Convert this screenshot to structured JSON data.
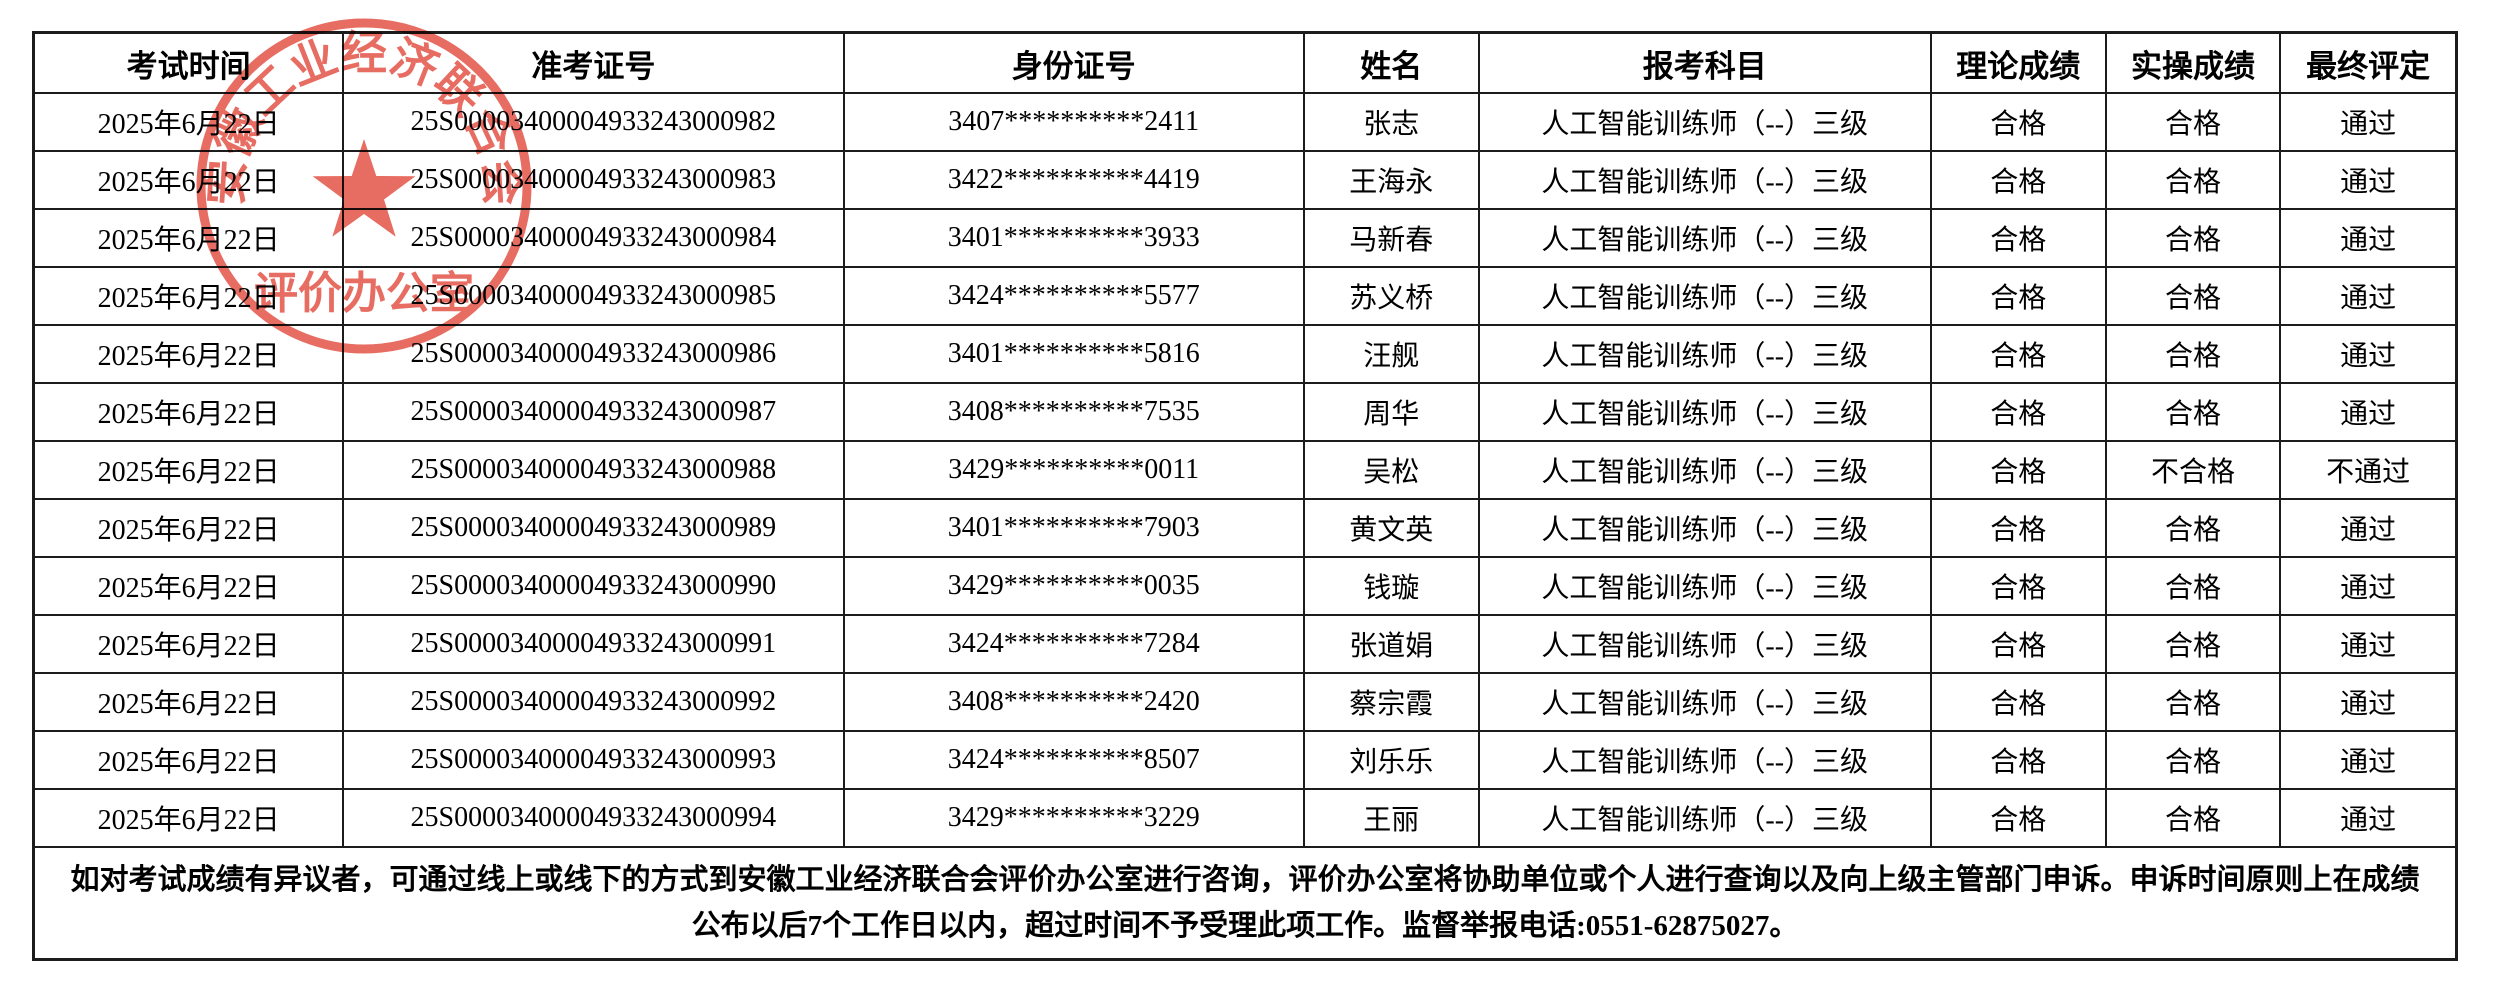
{
  "document": {
    "type": "exam-score-publication-table",
    "language": "zh-CN"
  },
  "colors": {
    "background": "#ffffff",
    "border": "#1c1c1c",
    "text": "#000000",
    "seal_red": "#e4584c"
  },
  "table": {
    "columns": [
      {
        "key": "date",
        "label": "考试时间"
      },
      {
        "key": "ticket_no",
        "label": "准考证号"
      },
      {
        "key": "id_no",
        "label": "身份证号"
      },
      {
        "key": "name",
        "label": "姓名"
      },
      {
        "key": "subject",
        "label": "报考科目"
      },
      {
        "key": "theory",
        "label": "理论成绩"
      },
      {
        "key": "practical",
        "label": "实操成绩"
      },
      {
        "key": "result",
        "label": "最终评定"
      }
    ],
    "rows": [
      {
        "date": "2025年6月22日",
        "ticket_no": "25S00003400004933243000982",
        "id_no": "3407**********2411",
        "name": "张志",
        "subject": "人工智能训练师（--）三级",
        "theory": "合格",
        "practical": "合格",
        "result": "通过"
      },
      {
        "date": "2025年6月22日",
        "ticket_no": "25S00003400004933243000983",
        "id_no": "3422**********4419",
        "name": "王海永",
        "subject": "人工智能训练师（--）三级",
        "theory": "合格",
        "practical": "合格",
        "result": "通过"
      },
      {
        "date": "2025年6月22日",
        "ticket_no": "25S00003400004933243000984",
        "id_no": "3401**********3933",
        "name": "马新春",
        "subject": "人工智能训练师（--）三级",
        "theory": "合格",
        "practical": "合格",
        "result": "通过"
      },
      {
        "date": "2025年6月22日",
        "ticket_no": "25S00003400004933243000985",
        "id_no": "3424**********5577",
        "name": "苏义桥",
        "subject": "人工智能训练师（--）三级",
        "theory": "合格",
        "practical": "合格",
        "result": "通过"
      },
      {
        "date": "2025年6月22日",
        "ticket_no": "25S00003400004933243000986",
        "id_no": "3401**********5816",
        "name": "汪舰",
        "subject": "人工智能训练师（--）三级",
        "theory": "合格",
        "practical": "合格",
        "result": "通过"
      },
      {
        "date": "2025年6月22日",
        "ticket_no": "25S00003400004933243000987",
        "id_no": "3408**********7535",
        "name": "周华",
        "subject": "人工智能训练师（--）三级",
        "theory": "合格",
        "practical": "合格",
        "result": "通过"
      },
      {
        "date": "2025年6月22日",
        "ticket_no": "25S00003400004933243000988",
        "id_no": "3429**********0011",
        "name": "吴松",
        "subject": "人工智能训练师（--）三级",
        "theory": "合格",
        "practical": "不合格",
        "result": "不通过"
      },
      {
        "date": "2025年6月22日",
        "ticket_no": "25S00003400004933243000989",
        "id_no": "3401**********7903",
        "name": "黄文英",
        "subject": "人工智能训练师（--）三级",
        "theory": "合格",
        "practical": "合格",
        "result": "通过"
      },
      {
        "date": "2025年6月22日",
        "ticket_no": "25S00003400004933243000990",
        "id_no": "3429**********0035",
        "name": "钱璇",
        "subject": "人工智能训练师（--）三级",
        "theory": "合格",
        "practical": "合格",
        "result": "通过"
      },
      {
        "date": "2025年6月22日",
        "ticket_no": "25S00003400004933243000991",
        "id_no": "3424**********7284",
        "name": "张道娟",
        "subject": "人工智能训练师（--）三级",
        "theory": "合格",
        "practical": "合格",
        "result": "通过"
      },
      {
        "date": "2025年6月22日",
        "ticket_no": "25S00003400004933243000992",
        "id_no": "3408**********2420",
        "name": "蔡宗霞",
        "subject": "人工智能训练师（--）三级",
        "theory": "合格",
        "practical": "合格",
        "result": "通过"
      },
      {
        "date": "2025年6月22日",
        "ticket_no": "25S00003400004933243000993",
        "id_no": "3424**********8507",
        "name": "刘乐乐",
        "subject": "人工智能训练师（--）三级",
        "theory": "合格",
        "practical": "合格",
        "result": "通过"
      },
      {
        "date": "2025年6月22日",
        "ticket_no": "25S00003400004933243000994",
        "id_no": "3429**********3229",
        "name": "王丽",
        "subject": "人工智能训练师（--）三级",
        "theory": "合格",
        "practical": "合格",
        "result": "通过"
      }
    ],
    "footer_note": "如对考试成绩有异议者，可通过线上或线下的方式到安徽工业经济联合会评价办公室进行咨询，评价办公室将协助单位或个人进行查询以及向上级主管部门申诉。申诉时间原则上在成绩公布以后7个工作日以内，超过时间不予受理此项工作。监督举报电话:0551-62875027。"
  },
  "stamp": {
    "arc_text": "安徽工业经济联合会",
    "office_text": "评价办公室",
    "star_icon": "five-pointed-star",
    "color": "#e4584c"
  }
}
